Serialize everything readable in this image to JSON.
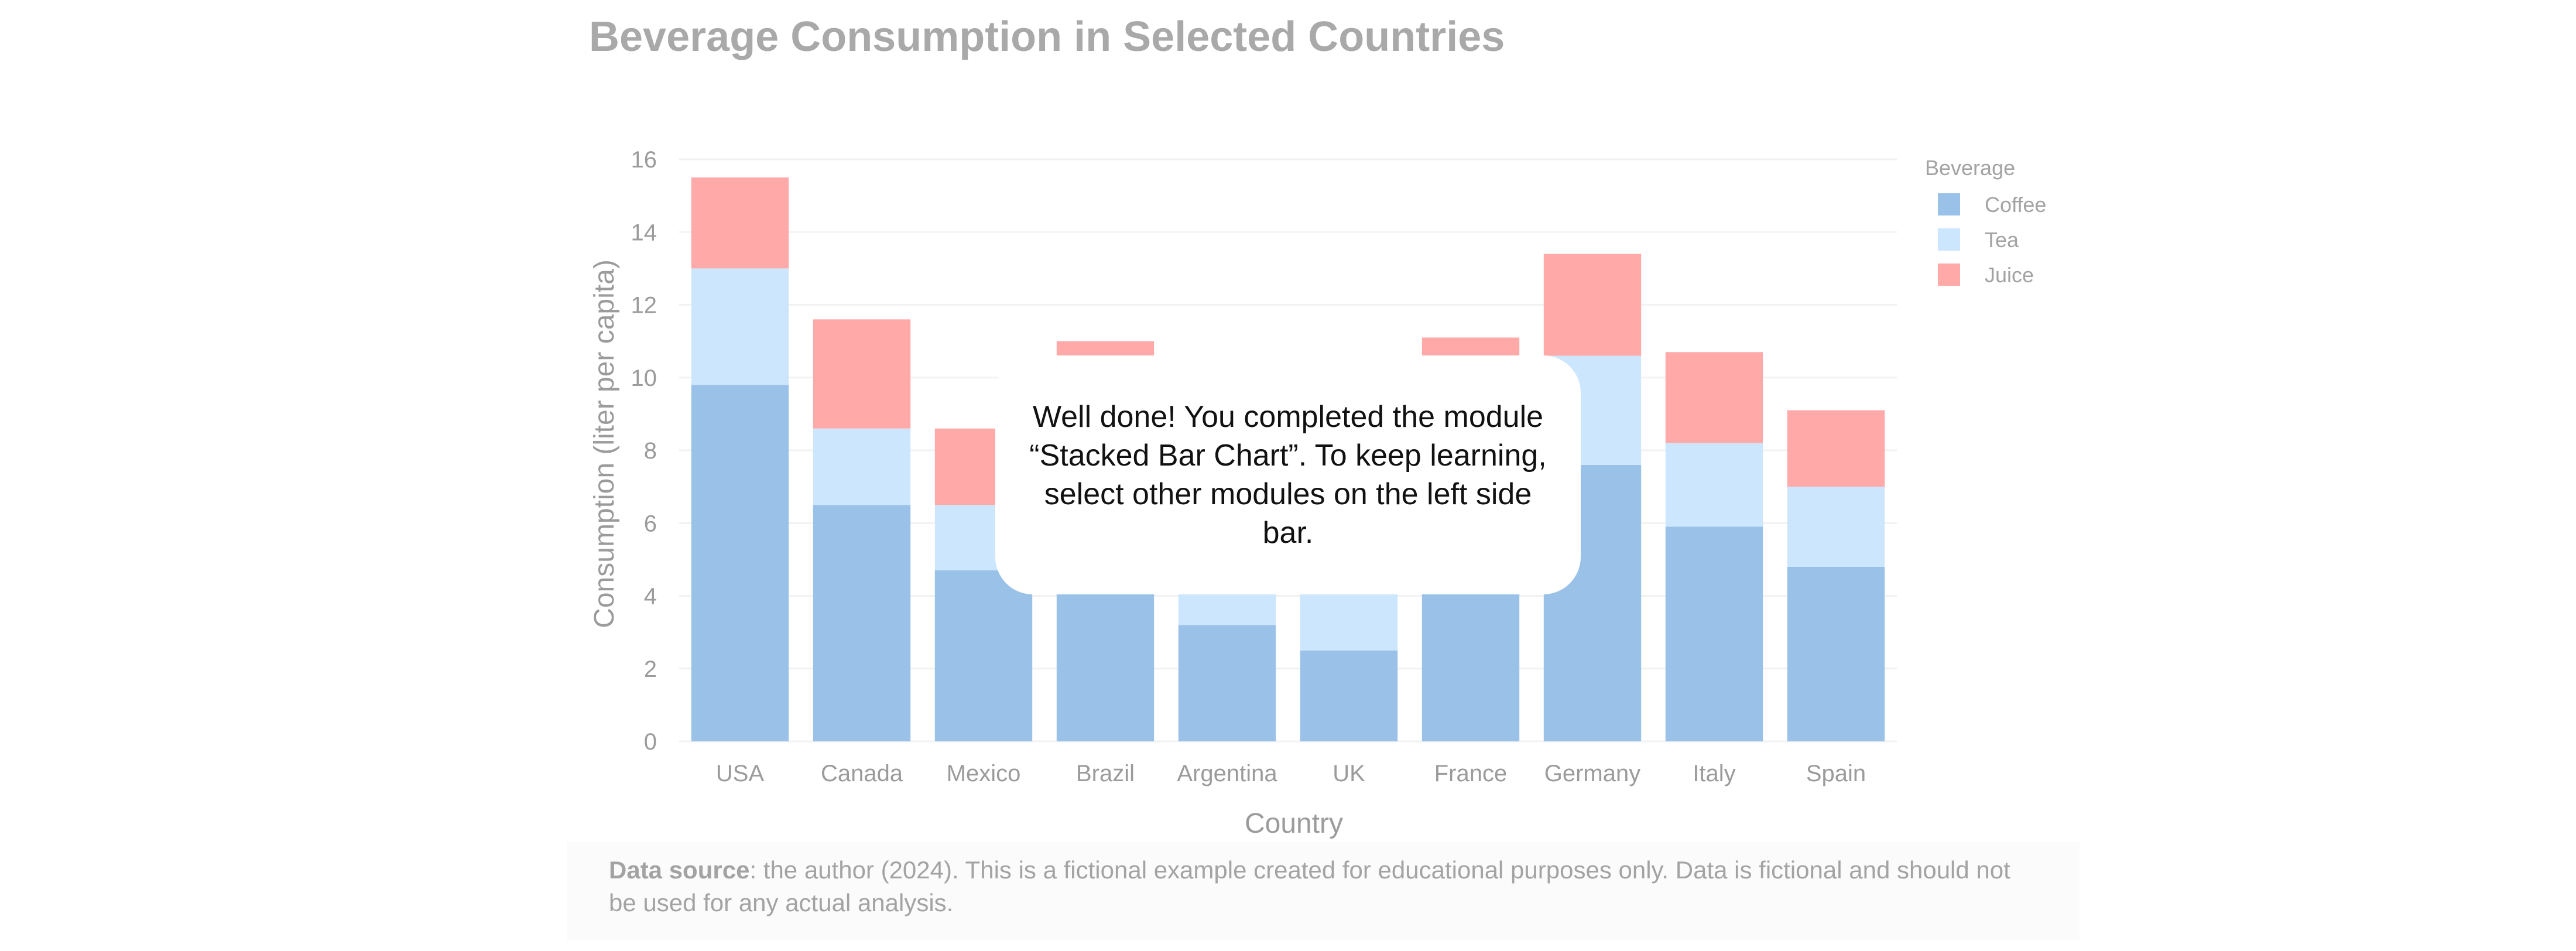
{
  "chart_data": {
    "type": "bar",
    "stacked": true,
    "title": "Beverage Consumption in Selected Countries",
    "xlabel": "Country",
    "ylabel": "Consumption (liter per capita)",
    "ylim": [
      0,
      16
    ],
    "yticks": [
      0,
      2,
      4,
      6,
      8,
      10,
      12,
      14,
      16
    ],
    "grid": true,
    "legend": {
      "title": "Beverage",
      "placement": "top-right"
    },
    "categories": [
      "USA",
      "Canada",
      "Mexico",
      "Brazil",
      "Argentina",
      "UK",
      "France",
      "Germany",
      "Italy",
      "Spain"
    ],
    "series": [
      {
        "name": "Coffee",
        "color": "#9ac2e8",
        "values": [
          9.8,
          6.5,
          4.7,
          5.2,
          3.2,
          2.5,
          5.0,
          7.6,
          5.9,
          4.8
        ]
      },
      {
        "name": "Tea",
        "color": "#cce6fd",
        "values": [
          3.2,
          2.1,
          1.8,
          5.3,
          2.0,
          4.3,
          5.6,
          3.0,
          2.3,
          2.2
        ]
      },
      {
        "name": "Juice",
        "color": "#ffa9a9",
        "values": [
          2.5,
          3.0,
          2.1,
          0.5,
          2.0,
          1.6,
          0.5,
          2.8,
          2.5,
          2.1
        ]
      }
    ]
  },
  "source": {
    "label": "Data source",
    "text": ": the author (2024). This is a fictional example created for educational purposes only. Data is fictional and should not be used for any actual analysis."
  },
  "overlay": {
    "message": "Well done! You completed the module “Stacked Bar Chart”. To keep learning, select other modules on the left side bar."
  }
}
